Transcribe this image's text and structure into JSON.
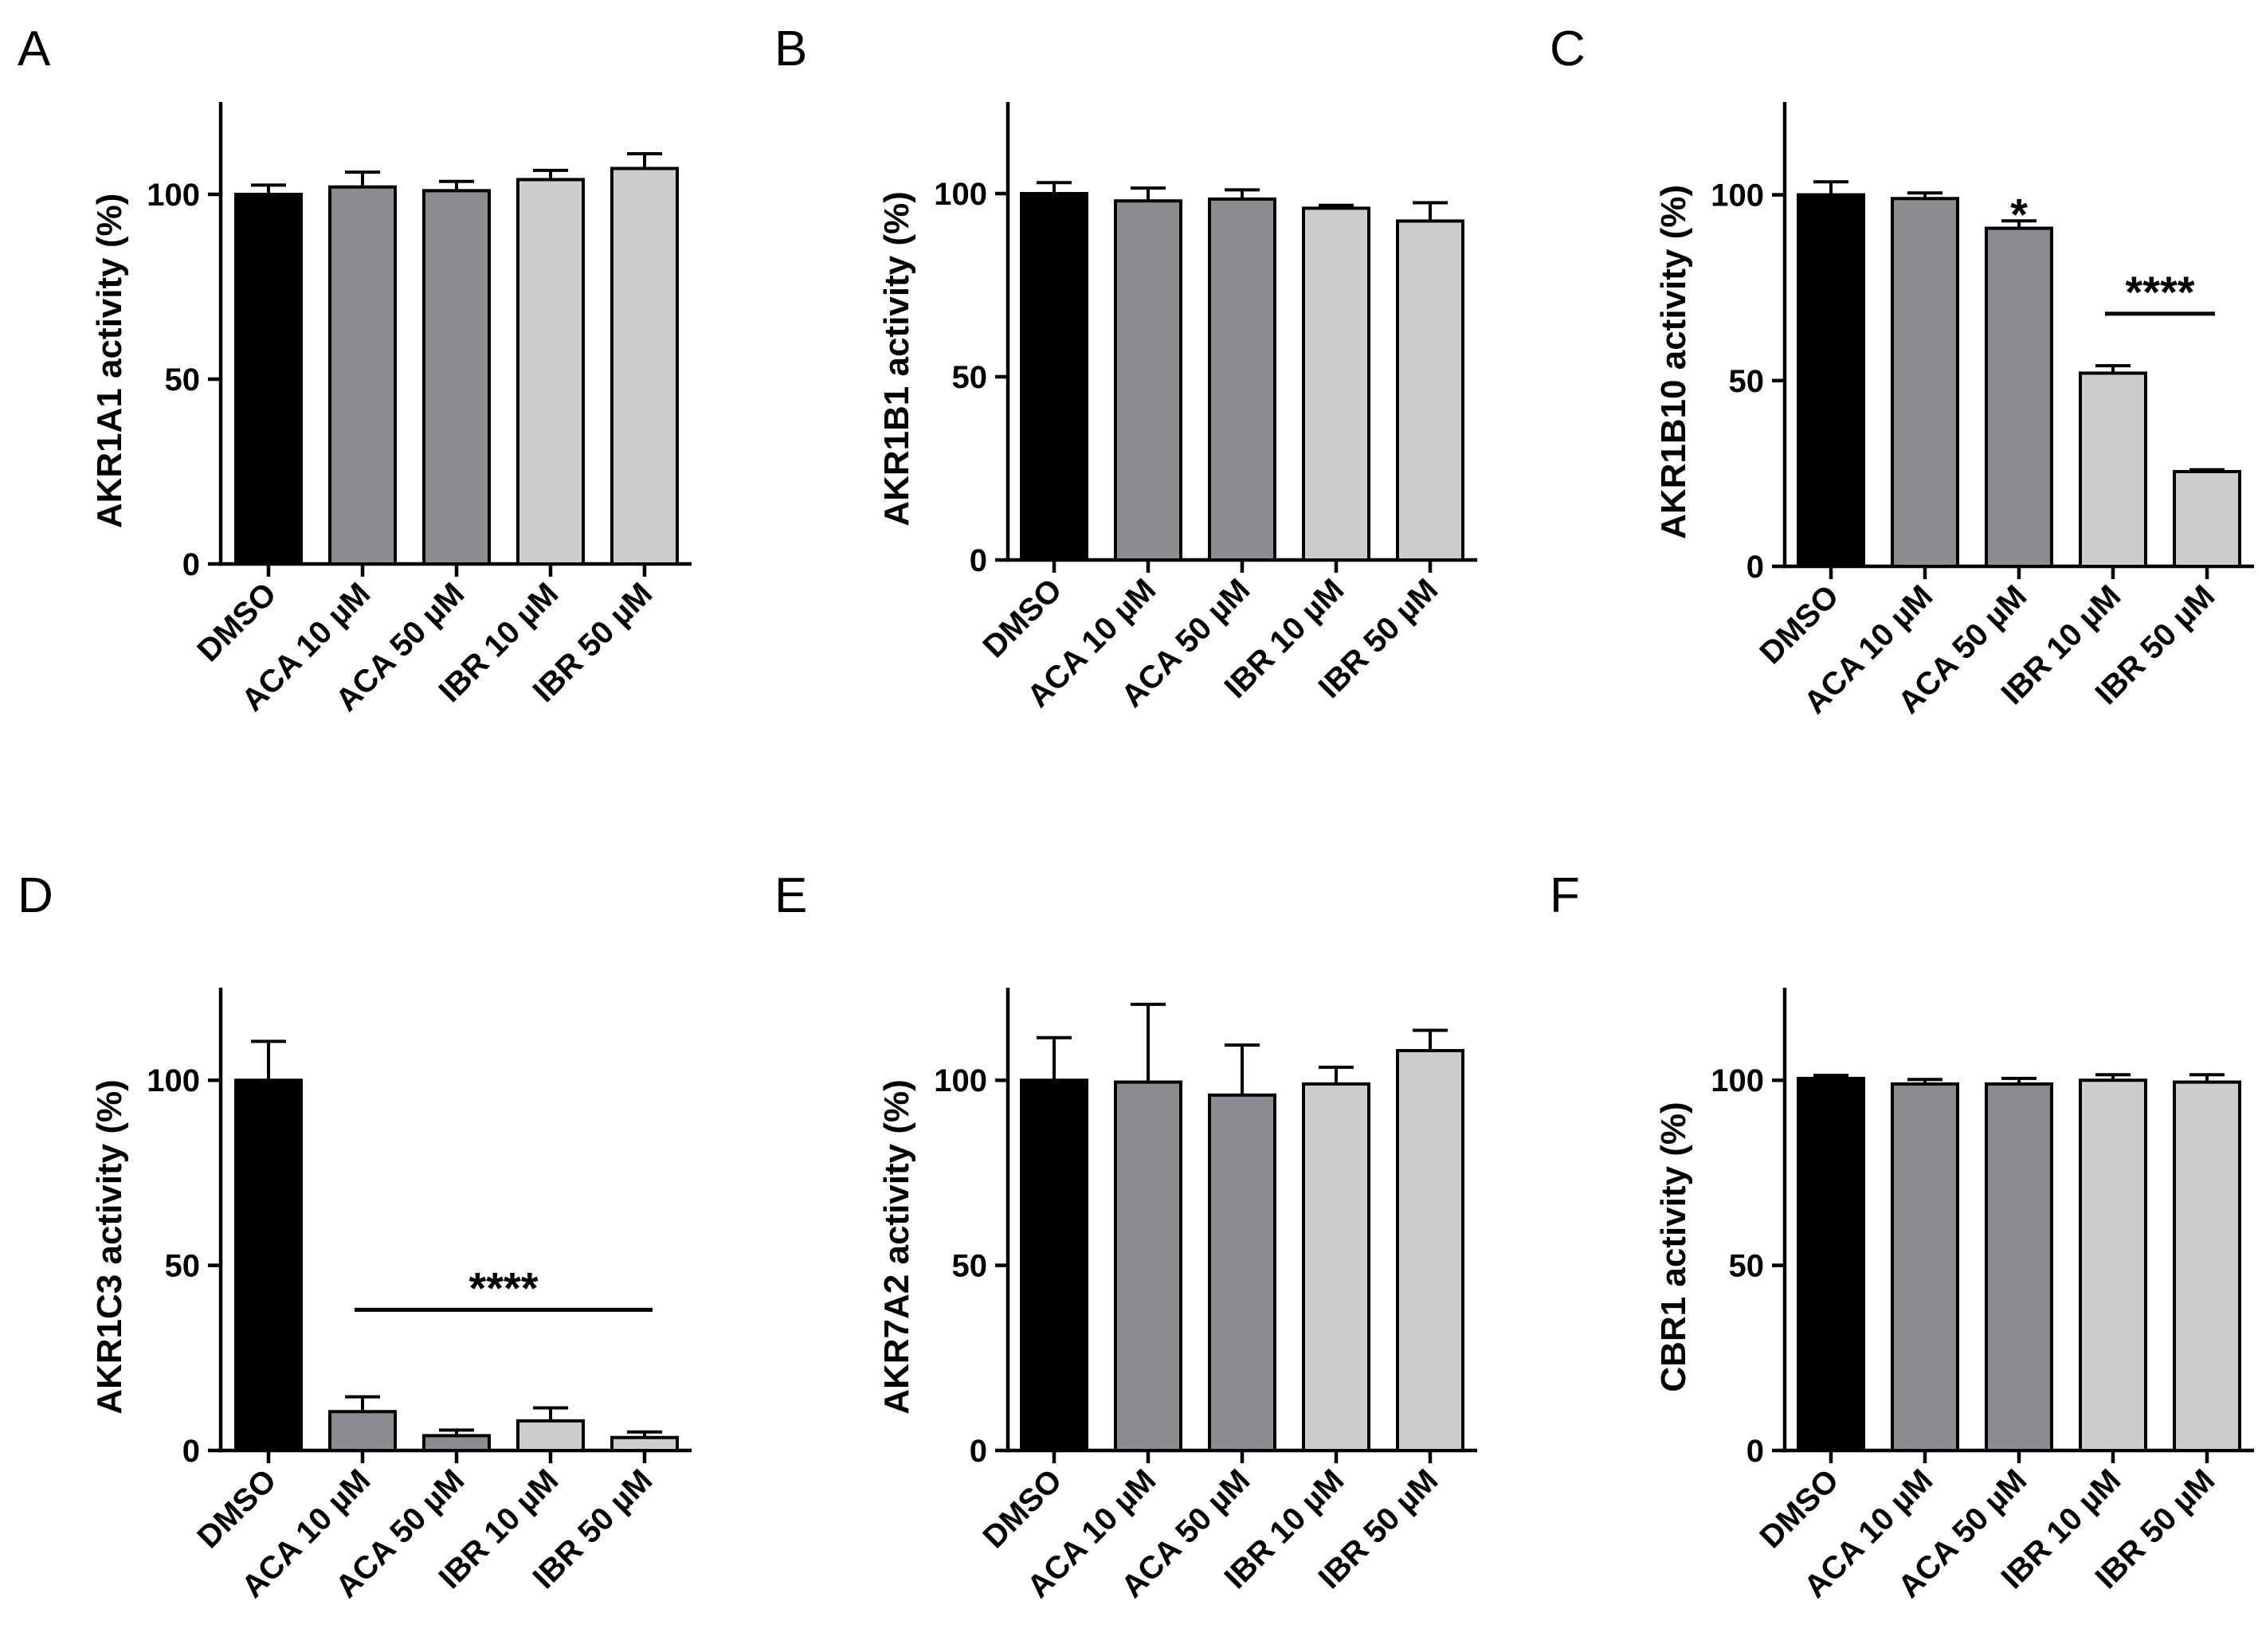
{
  "colors": {
    "dmso": "#000000",
    "aca": "#8c8c90",
    "ibr": "#cdcdcd",
    "axis": "#000000"
  },
  "chart_data": [
    {
      "type": "bar",
      "panel": "A",
      "ylabel": "AKR1A1 activity (%)",
      "ylim": [
        0,
        125
      ],
      "yticks": [
        0,
        50,
        100
      ],
      "categories": [
        "DMSO",
        "ACA 10 µM",
        "ACA 50 µM",
        "IBR 10 µM",
        "IBR 50 µM"
      ],
      "values": [
        100,
        102,
        101,
        104,
        107
      ],
      "errors": [
        2.5,
        4,
        2.5,
        2.5,
        4
      ],
      "significance": []
    },
    {
      "type": "bar",
      "panel": "B",
      "ylabel": "AKR1B1 activity (%)",
      "ylim": [
        0,
        125
      ],
      "yticks": [
        0,
        50,
        100
      ],
      "categories": [
        "DMSO",
        "ACA 10 µM",
        "ACA 50 µM",
        "IBR 10 µM",
        "IBR 50 µM"
      ],
      "values": [
        100,
        98,
        98.5,
        96,
        92.5
      ],
      "errors": [
        3,
        3.5,
        2.5,
        0.8,
        5
      ],
      "significance": []
    },
    {
      "type": "bar",
      "panel": "C",
      "ylabel": "AKR1B10 activity (%)",
      "ylim": [
        0,
        125
      ],
      "yticks": [
        0,
        50,
        100
      ],
      "categories": [
        "DMSO",
        "ACA 10 µM",
        "ACA 50 µM",
        "IBR 10 µM",
        "IBR 50 µM"
      ],
      "values": [
        100,
        99,
        91,
        52,
        25.5
      ],
      "errors": [
        3.5,
        1.5,
        2,
        2,
        0.5
      ],
      "significance": [
        {
          "label": "*",
          "from": 2,
          "to": 2,
          "y": 97
        },
        {
          "label": "****",
          "from": 3,
          "to": 4,
          "y": 68
        }
      ]
    },
    {
      "type": "bar",
      "panel": "D",
      "ylabel": "AKR1C3 activity (%)",
      "ylim": [
        0,
        125
      ],
      "yticks": [
        0,
        50,
        100
      ],
      "categories": [
        "DMSO",
        "ACA 10 µM",
        "ACA 50 µM",
        "IBR 10 µM",
        "IBR 50 µM"
      ],
      "values": [
        100,
        10.5,
        4,
        8,
        3.5
      ],
      "errors": [
        10.5,
        4,
        1.5,
        3.5,
        1.5
      ],
      "significance": [
        {
          "label": "****",
          "from": 1,
          "to": 4,
          "y": 38
        }
      ]
    },
    {
      "type": "bar",
      "panel": "E",
      "ylabel": "AKR7A2 activity (%)",
      "ylim": [
        0,
        125
      ],
      "yticks": [
        0,
        50,
        100
      ],
      "categories": [
        "DMSO",
        "ACA 10 µM",
        "ACA 50 µM",
        "IBR 10 µM",
        "IBR 50 µM"
      ],
      "values": [
        100,
        99.5,
        96,
        99,
        108
      ],
      "errors": [
        11.5,
        21,
        13.5,
        4.5,
        5.5
      ],
      "significance": []
    },
    {
      "type": "bar",
      "panel": "F",
      "ylabel": "CBR1 activity (%)",
      "ylim": [
        0,
        125
      ],
      "yticks": [
        0,
        50,
        100
      ],
      "categories": [
        "DMSO",
        "ACA 10 µM",
        "ACA 50 µM",
        "IBR 10 µM",
        "IBR 50 µM"
      ],
      "values": [
        100.5,
        99,
        99,
        100,
        99.5
      ],
      "errors": [
        0.8,
        1.2,
        1.5,
        1.5,
        2
      ],
      "significance": []
    }
  ]
}
